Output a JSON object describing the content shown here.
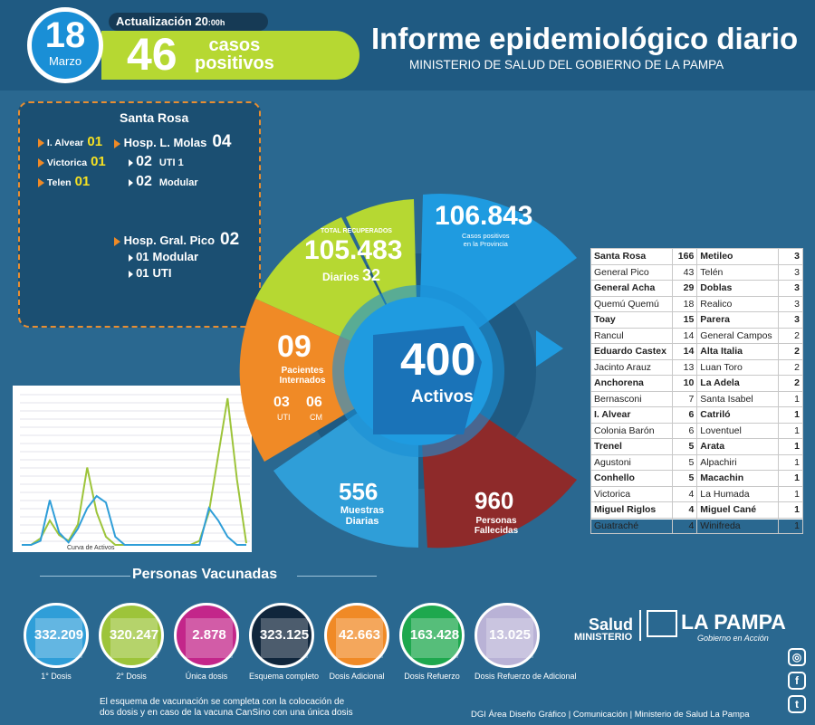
{
  "header": {
    "day": "18",
    "month": "Marzo",
    "update_label": "Actualización 20",
    "update_time": ":00h",
    "new_cases": "46",
    "new_cases_label_1": "casos",
    "new_cases_label_2": "positivos",
    "title": "Informe epidemiológico diario",
    "subtitle": "MINISTERIO DE SALUD DEL GOBIERNO DE LA PAMPA"
  },
  "hospital_box": {
    "city": "Santa Rosa",
    "towns": [
      {
        "name": "I. Alvear",
        "value": "01"
      },
      {
        "name": "Victorica",
        "value": "01"
      },
      {
        "name": "Telen",
        "value": "01"
      }
    ],
    "hospitals": [
      {
        "name": "Hosp. L. Molas",
        "value": "04",
        "sub": [
          {
            "value": "02",
            "label": "UTI 1"
          },
          {
            "value": "02",
            "label": "Modular"
          }
        ]
      },
      {
        "name": "Hosp. Gral. Pico",
        "value": "02",
        "sub": [
          {
            "value": "01",
            "label": "Modular"
          },
          {
            "value": "01",
            "label": "UTI"
          }
        ]
      }
    ]
  },
  "wheel": {
    "active": "400",
    "active_label": "Activos",
    "recovered_caption": "TOTAL RECUPERADOS",
    "recovered": "105.483",
    "daily_label": "Diarios",
    "daily": "32",
    "positives": "106.843",
    "positives_label_1": "Casos positivos",
    "positives_label_2": "en la Provincia",
    "hospitalized": "09",
    "hospitalized_label_1": "Pacientes",
    "hospitalized_label_2": "Internados",
    "uti": "03",
    "uti_label": "UTI",
    "cm": "06",
    "cm_label": "CM",
    "samples": "556",
    "samples_label_1": "Muestras",
    "samples_label_2": "Diarias",
    "deaths": "960",
    "deaths_label_1": "Personas",
    "deaths_label_2": "Fallecidas"
  },
  "chart_caption": "Curva de Activos",
  "chart_series": {
    "green": [
      0,
      0,
      8,
      30,
      12,
      5,
      25,
      95,
      40,
      10,
      0,
      0,
      0,
      0,
      0,
      0,
      0,
      0,
      0,
      5,
      40,
      110,
      180,
      80,
      2
    ],
    "blue": [
      0,
      0,
      5,
      55,
      15,
      3,
      20,
      45,
      60,
      52,
      10,
      0,
      0,
      0,
      0,
      0,
      0,
      0,
      0,
      0,
      45,
      30,
      10,
      0,
      0
    ]
  },
  "localities": [
    [
      {
        "name": "Santa Rosa",
        "n": "166",
        "b": true
      },
      {
        "name": "Metileo",
        "n": "3",
        "b": true
      }
    ],
    [
      {
        "name": "General Pico",
        "n": "43",
        "b": false
      },
      {
        "name": "Telén",
        "n": "3",
        "b": false
      }
    ],
    [
      {
        "name": "General Acha",
        "n": "29",
        "b": true
      },
      {
        "name": "Doblas",
        "n": "3",
        "b": true
      }
    ],
    [
      {
        "name": "Quemú Quemú",
        "n": "18",
        "b": false
      },
      {
        "name": "Realico",
        "n": "3",
        "b": false
      }
    ],
    [
      {
        "name": "Toay",
        "n": "15",
        "b": true
      },
      {
        "name": "Parera",
        "n": "3",
        "b": true
      }
    ],
    [
      {
        "name": "Rancul",
        "n": "14",
        "b": false
      },
      {
        "name": "General Campos",
        "n": "2",
        "b": false
      }
    ],
    [
      {
        "name": "Eduardo Castex",
        "n": "14",
        "b": true
      },
      {
        "name": "Alta Italia",
        "n": "2",
        "b": true
      }
    ],
    [
      {
        "name": "Jacinto Arauz",
        "n": "13",
        "b": false
      },
      {
        "name": "Luan Toro",
        "n": "2",
        "b": false
      }
    ],
    [
      {
        "name": "Anchorena",
        "n": "10",
        "b": true
      },
      {
        "name": "La Adela",
        "n": "2",
        "b": true
      }
    ],
    [
      {
        "name": "Bernasconi",
        "n": "7",
        "b": false
      },
      {
        "name": "Santa Isabel",
        "n": "1",
        "b": false
      }
    ],
    [
      {
        "name": "I. Alvear",
        "n": "6",
        "b": true
      },
      {
        "name": "Catriló",
        "n": "1",
        "b": true
      }
    ],
    [
      {
        "name": "Colonia Barón",
        "n": "6",
        "b": false
      },
      {
        "name": "Loventuel",
        "n": "1",
        "b": false
      }
    ],
    [
      {
        "name": "Trenel",
        "n": "5",
        "b": true
      },
      {
        "name": "Arata",
        "n": "1",
        "b": true
      }
    ],
    [
      {
        "name": "Agustoni",
        "n": "5",
        "b": false
      },
      {
        "name": "Alpachiri",
        "n": "1",
        "b": false
      }
    ],
    [
      {
        "name": "Conhello",
        "n": "5",
        "b": true
      },
      {
        "name": "Macachin",
        "n": "1",
        "b": true
      }
    ],
    [
      {
        "name": "Victorica",
        "n": "4",
        "b": false
      },
      {
        "name": "La Humada",
        "n": "1",
        "b": false
      }
    ],
    [
      {
        "name": "Miguel Riglos",
        "n": "4",
        "b": true
      },
      {
        "name": "Miguel Cané",
        "n": "1",
        "b": true
      }
    ],
    [
      {
        "name": "Guatraché",
        "n": "4",
        "b": false
      },
      {
        "name": "Winifreda",
        "n": "1",
        "b": false
      }
    ]
  ],
  "vaccination": {
    "title": "Personas Vacunadas",
    "items": [
      {
        "value": "332.209",
        "label": "1° Dosis",
        "color": "#2f9ed8"
      },
      {
        "value": "320.247",
        "label": "2° Dosis",
        "color": "#9dc43a"
      },
      {
        "value": "2.878",
        "label": "Única dosis",
        "color": "#c3268a"
      },
      {
        "value": "323.125",
        "label": "Esquema completo",
        "color": "#10263c"
      },
      {
        "value": "42.663",
        "label": "Dosis Adicional",
        "color": "#f08a26"
      },
      {
        "value": "163.428",
        "label": "Dosis Refuerzo",
        "color": "#1ea84e"
      },
      {
        "value": "13.025",
        "label": "Dosis Refuerzo de Adicional",
        "color": "#b9b2d6"
      }
    ]
  },
  "brand": {
    "salud": "Salud",
    "ministerio": "MINISTERIO",
    "province": "LA PAMPA",
    "tagline": "Gobierno en Acción"
  },
  "footnote_1": "El esquema de vacunación se completa con la colocación de",
  "footnote_2": "dos dosis y en caso de la vacuna CanSino con una única dosis",
  "credit": "DGI Área Diseño Gráfico  | Comunicación | Ministerio de Salud La Pampa",
  "social": {
    "instagram": "instagram-icon",
    "facebook": "facebook-icon",
    "twitter": "twitter-icon"
  }
}
